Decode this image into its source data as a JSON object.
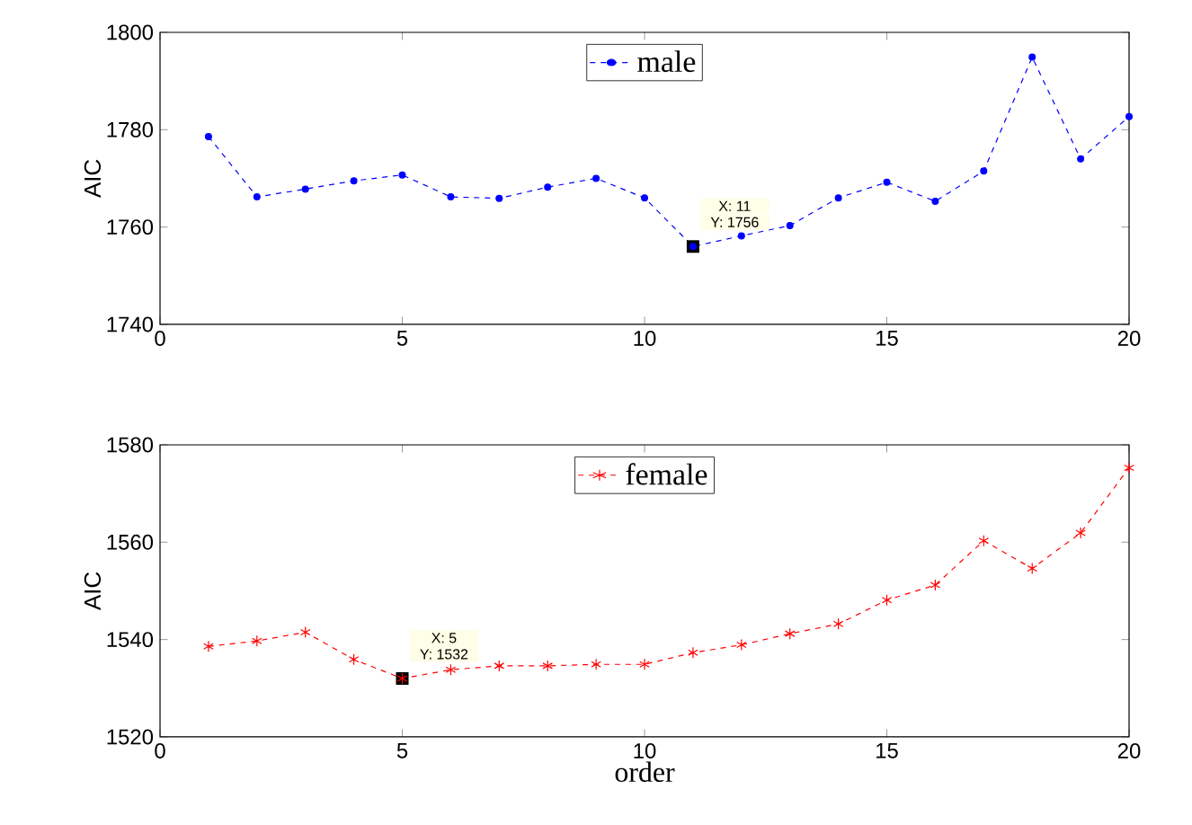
{
  "chart_data": [
    {
      "type": "line",
      "ylabel": "AIC",
      "x": [
        1,
        2,
        3,
        4,
        5,
        6,
        7,
        8,
        9,
        10,
        11,
        12,
        13,
        14,
        15,
        16,
        17,
        18,
        19,
        20
      ],
      "xlim": [
        0,
        20
      ],
      "xticks": [
        0,
        5,
        10,
        15,
        20
      ],
      "ylim": [
        1740,
        1800
      ],
      "yticks": [
        1740,
        1760,
        1780,
        1800
      ],
      "legend": "top",
      "marker": "circle",
      "line_style": "dashed",
      "series": [
        {
          "name": "male",
          "color": "#0000ff",
          "values": [
            1778.6,
            1766.2,
            1767.8,
            1769.5,
            1770.7,
            1766.2,
            1765.9,
            1768.2,
            1770.0,
            1766.0,
            1756,
            1758.2,
            1760.3,
            1766.0,
            1769.2,
            1765.3,
            1771.5,
            1794.9,
            1774.0,
            1782.7
          ]
        }
      ],
      "annotations": [
        "X: 11",
        {
          "text": "Y: 1756",
          "x": 11,
          "y": 1756
        }
      ]
    },
    {
      "type": "line",
      "xlabel": "order",
      "ylabel": "AIC",
      "x": [
        1,
        2,
        3,
        4,
        5,
        6,
        7,
        8,
        9,
        10,
        11,
        12,
        13,
        14,
        15,
        16,
        17,
        18,
        19,
        20
      ],
      "xlim": [
        0,
        20
      ],
      "xticks": [
        0,
        5,
        10,
        15,
        20
      ],
      "ylim": [
        1520,
        1580
      ],
      "yticks": [
        1520,
        1540,
        1560,
        1580
      ],
      "legend": "top",
      "marker": "cross",
      "line_style": "dashed",
      "series": [
        {
          "name": "female",
          "color": "#ff0000",
          "values": [
            1538.6,
            1539.7,
            1541.5,
            1535.9,
            1532,
            1533.8,
            1534.6,
            1534.6,
            1534.9,
            1534.9,
            1537.3,
            1538.9,
            1541.2,
            1543.2,
            1548.1,
            1551.2,
            1560.3,
            1554.6,
            1561.9,
            1575.3
          ]
        }
      ],
      "annotations": [
        "X: 5",
        {
          "text": "Y: 1532",
          "x": 5,
          "y": 1532
        }
      ]
    }
  ]
}
